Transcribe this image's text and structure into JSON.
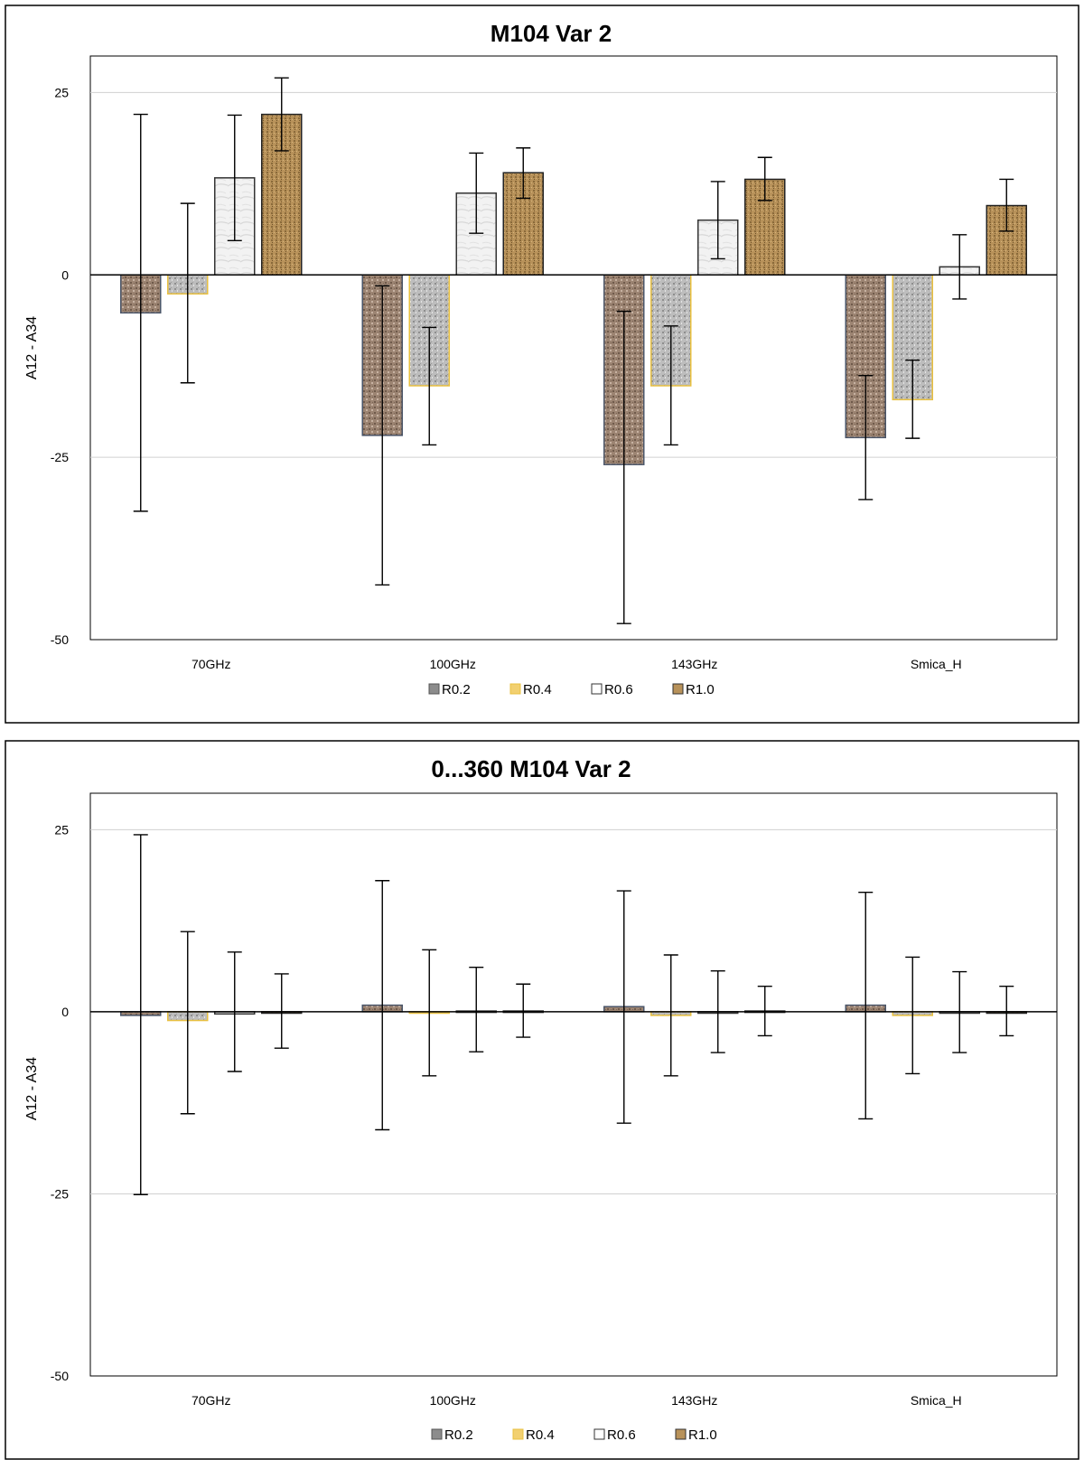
{
  "palette": {
    "R0.2": "#9c8472",
    "R0.4": "#bdbdbd",
    "R0.6": "#f2f2f2",
    "R1.0": "#b8925a",
    "stroke_R0.2": "#4a5568",
    "stroke_R0.4": "#e8c040",
    "stroke_R0.6": "#333333",
    "stroke_R1.0": "#222222",
    "legend_R0.2": "#8c8c8c",
    "legend_R0.4": "#f2d070",
    "legend_R0.6": "#ffffff",
    "legend_R1.0": "#b8925a",
    "grid": "#d0d0d0",
    "axis": "#000000",
    "frame": "#000000"
  },
  "chart_data": [
    {
      "type": "bar",
      "title": "M104  Var 2",
      "xlabel": "",
      "ylabel": "A12 - A34",
      "ylim": [
        -50,
        30
      ],
      "yticks": [
        "25",
        "0",
        "-25",
        "-50"
      ],
      "ytick_values": [
        25,
        0,
        -25,
        -50
      ],
      "categories": [
        "70GHz",
        "100GHz",
        "143GHz",
        "Smica_H"
      ],
      "legend": [
        "R0.2",
        "R0.4",
        "R0.6",
        "R1.0"
      ],
      "series": [
        {
          "name": "R0.2",
          "values": [
            -5.2,
            -22.0,
            -26.0,
            -22.3
          ],
          "err_low": [
            -32.4,
            -42.5,
            -47.8,
            -30.8
          ],
          "err_high": [
            22.0,
            -1.5,
            -5.0,
            -13.8
          ]
        },
        {
          "name": "R0.4",
          "values": [
            -2.6,
            -15.2,
            -15.2,
            -17.1
          ],
          "err_low": [
            -14.8,
            -23.3,
            -23.3,
            -22.4
          ],
          "err_high": [
            9.8,
            -7.2,
            -7.0,
            -11.7
          ]
        },
        {
          "name": "R0.6",
          "values": [
            13.3,
            11.2,
            7.5,
            1.1
          ],
          "err_low": [
            4.7,
            5.7,
            2.2,
            -3.3
          ],
          "err_high": [
            21.9,
            16.7,
            12.8,
            5.5
          ]
        },
        {
          "name": "R1.0",
          "values": [
            22.0,
            14.0,
            13.1,
            9.5
          ],
          "err_low": [
            17.0,
            10.5,
            10.2,
            6.0
          ],
          "err_high": [
            27.0,
            17.4,
            16.1,
            13.1
          ]
        }
      ]
    },
    {
      "type": "bar",
      "title": "0...360  M104  Var 2",
      "xlabel": "",
      "ylabel": "A12 - A34",
      "ylim": [
        -50,
        30
      ],
      "yticks": [
        "25",
        "0",
        "-25",
        "-50"
      ],
      "ytick_values": [
        25,
        0,
        -25,
        -50
      ],
      "categories": [
        "70GHz",
        "100GHz",
        "143GHz",
        "Smica_H"
      ],
      "legend": [
        "R0.2",
        "R0.4",
        "R0.6",
        "R1.0"
      ],
      "series": [
        {
          "name": "R0.2",
          "values": [
            -0.5,
            0.9,
            0.7,
            0.9
          ],
          "err_low": [
            -25.1,
            -16.2,
            -15.3,
            -14.7
          ],
          "err_high": [
            24.3,
            18.0,
            16.6,
            16.4
          ]
        },
        {
          "name": "R0.4",
          "values": [
            -1.2,
            -0.2,
            -0.5,
            -0.5
          ],
          "err_low": [
            -14.0,
            -8.8,
            -8.8,
            -8.5
          ],
          "err_high": [
            11.0,
            8.5,
            7.8,
            7.5
          ]
        },
        {
          "name": "R0.6",
          "values": [
            -0.3,
            0.1,
            -0.2,
            -0.2
          ],
          "err_low": [
            -8.2,
            -5.5,
            -5.6,
            -5.6
          ],
          "err_high": [
            8.2,
            6.1,
            5.6,
            5.5
          ]
        },
        {
          "name": "R1.0",
          "values": [
            -0.2,
            0.1,
            0.1,
            -0.2
          ],
          "err_low": [
            -5.0,
            -3.5,
            -3.3,
            -3.3
          ],
          "err_high": [
            5.2,
            3.8,
            3.5,
            3.5
          ]
        }
      ]
    }
  ]
}
